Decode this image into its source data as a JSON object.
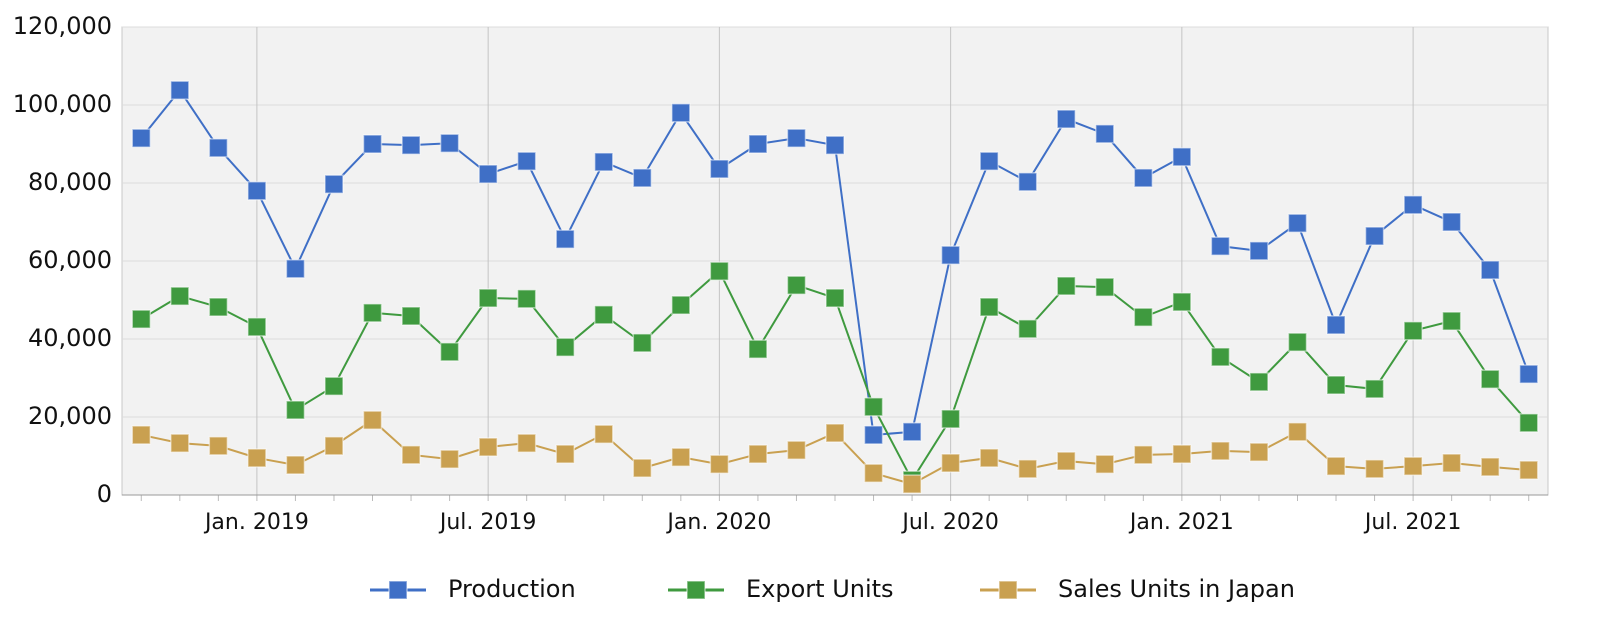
{
  "chart_data": {
    "type": "line",
    "categories": [
      null,
      null,
      null,
      "Jan. 2019",
      null,
      null,
      null,
      null,
      null,
      "Jul. 2019",
      null,
      null,
      null,
      null,
      null,
      "Jan. 2020",
      null,
      null,
      null,
      null,
      null,
      "Jul. 2020",
      null,
      null,
      null,
      null,
      null,
      "Jan. 2021",
      null,
      null,
      null,
      null,
      null,
      "Jul. 2021",
      null,
      null,
      null
    ],
    "series": [
      {
        "name": "Production",
        "color": "#3f6fc6",
        "values": [
          91500,
          103800,
          89000,
          78000,
          58000,
          79700,
          90000,
          89700,
          90200,
          82300,
          85600,
          65600,
          85400,
          81300,
          98000,
          83600,
          90000,
          91500,
          89700,
          15400,
          16200,
          61500,
          85600,
          80300,
          96400,
          92600,
          81300,
          86700,
          63800,
          62600,
          69700,
          43600,
          66400,
          74400,
          70000,
          57700,
          31000
        ]
      },
      {
        "name": "Export Units",
        "color": "#3f9a3f",
        "values": [
          45100,
          51000,
          48200,
          43100,
          21800,
          27900,
          46700,
          45900,
          36700,
          50500,
          50300,
          37900,
          46200,
          39000,
          48700,
          57400,
          37400,
          53800,
          50500,
          22600,
          3800,
          19500,
          48200,
          42600,
          53600,
          53300,
          45600,
          49500,
          35400,
          29000,
          39200,
          28200,
          27200,
          42100,
          44600,
          29700,
          18500
        ]
      },
      {
        "name": "Sales Units in Japan",
        "color": "#c9a050",
        "values": [
          15400,
          13300,
          12600,
          9500,
          7700,
          12600,
          19200,
          10300,
          9200,
          12300,
          13300,
          10500,
          15600,
          6900,
          9700,
          7900,
          10500,
          11500,
          15900,
          5600,
          2800,
          8200,
          9500,
          6700,
          8700,
          7900,
          10300,
          10500,
          11300,
          11000,
          16200,
          7400,
          6700,
          7400,
          8200,
          7200,
          6400
        ]
      }
    ],
    "ylim": [
      0,
      120000
    ],
    "yticks": [
      0,
      {
        "value": 20000,
        "label": "20,000"
      },
      {
        "value": 40000,
        "label": "40,000"
      },
      {
        "value": 60000,
        "label": "60,000"
      },
      {
        "value": 80000,
        "label": "80,000"
      },
      {
        "value": 100000,
        "label": "100,000"
      },
      {
        "value": 120000,
        "label": "120,000"
      }
    ],
    "grid": true,
    "legend": "bottom"
  }
}
